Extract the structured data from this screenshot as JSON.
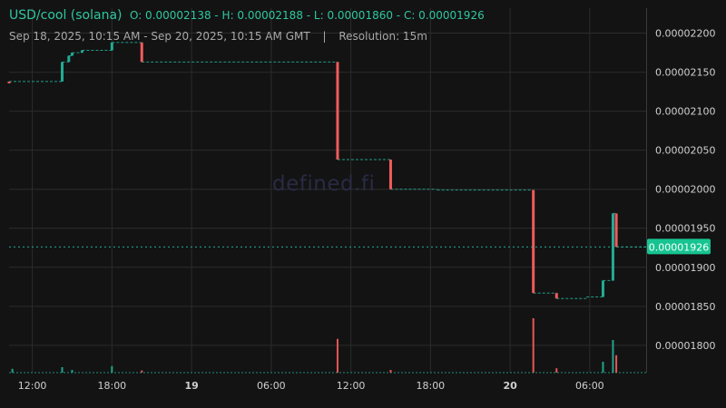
{
  "header": {
    "pair": "USD/cool (solana)",
    "ohlc": "O: 0.00002138 - H: 0.00002188 - L: 0.00001860 - C: 0.00001926",
    "range": "Sep 18, 2025, 10:15 AM - Sep 20, 2025, 10:15 AM GMT",
    "separator": "|",
    "resolution": "Resolution: 15m"
  },
  "watermark": "defined.fi",
  "colors": {
    "background": "#131313",
    "grid": "#2c2c2c",
    "up": "#22ab94",
    "down": "#f05b5b",
    "price_label_bg": "#17c491",
    "text": "#cfcfcf"
  },
  "chart_data": {
    "type": "candlestick",
    "x_ticks": [
      {
        "label": "12:00",
        "hour": 12,
        "bold": false
      },
      {
        "label": "18:00",
        "hour": 18,
        "bold": false
      },
      {
        "label": "19",
        "hour": 24,
        "bold": true
      },
      {
        "label": "06:00",
        "hour": 30,
        "bold": false
      },
      {
        "label": "12:00",
        "hour": 36,
        "bold": false
      },
      {
        "label": "18:00",
        "hour": 42,
        "bold": false
      },
      {
        "label": "20",
        "hour": 48,
        "bold": true
      },
      {
        "label": "06:00",
        "hour": 54,
        "bold": false
      }
    ],
    "x_range_hours": [
      10.25,
      58.25
    ],
    "y_ticks": [
      1.8e-05,
      1.85e-05,
      1.9e-05,
      1.95e-05,
      2e-05,
      2.05e-05,
      2.1e-05,
      2.15e-05,
      2.2e-05
    ],
    "y_tick_labels": [
      "0.00001800",
      "0.00001850",
      "0.00001900",
      "0.00001950",
      "0.00002000",
      "0.00002050",
      "0.00002100",
      "0.00002150",
      "0.00002200"
    ],
    "ylim": [
      1.765e-05,
      2.232e-05
    ],
    "last_price": 1.926e-05,
    "last_price_label": "0.00001926",
    "segments": [
      {
        "h0": 10.25,
        "h1": 14.25,
        "price": 2.138e-05
      },
      {
        "h0": 14.25,
        "h1": 14.75,
        "price": 2.163e-05
      },
      {
        "h0": 14.75,
        "h1": 15.0,
        "price": 2.171e-05
      },
      {
        "h0": 15.0,
        "h1": 15.75,
        "price": 2.175e-05
      },
      {
        "h0": 15.75,
        "h1": 18.0,
        "price": 2.178e-05
      },
      {
        "h0": 18.0,
        "h1": 20.25,
        "price": 2.188e-05
      },
      {
        "h0": 20.25,
        "h1": 35.0,
        "price": 2.163e-05
      },
      {
        "h0": 35.0,
        "h1": 39.0,
        "price": 2.038e-05
      },
      {
        "h0": 39.0,
        "h1": 42.5,
        "price": 2e-05
      },
      {
        "h0": 42.5,
        "h1": 49.75,
        "price": 1.999e-05
      },
      {
        "h0": 49.75,
        "h1": 51.5,
        "price": 1.867e-05
      },
      {
        "h0": 51.5,
        "h1": 53.75,
        "price": 1.86e-05
      },
      {
        "h0": 53.75,
        "h1": 55.0,
        "price": 1.862e-05
      },
      {
        "h0": 55.0,
        "h1": 55.75,
        "price": 1.883e-05
      },
      {
        "h0": 55.75,
        "h1": 56.0,
        "price": 1.969e-05
      },
      {
        "h0": 56.0,
        "h1": 58.25,
        "price": 1.926e-05
      }
    ],
    "candles": [
      {
        "hour": 10.25,
        "open": 2.138e-05,
        "close": 2.136e-05,
        "dir": "down"
      },
      {
        "hour": 14.25,
        "open": 2.138e-05,
        "close": 2.163e-05,
        "dir": "up"
      },
      {
        "hour": 14.75,
        "open": 2.163e-05,
        "close": 2.171e-05,
        "dir": "up"
      },
      {
        "hour": 15.0,
        "open": 2.171e-05,
        "close": 2.175e-05,
        "dir": "up"
      },
      {
        "hour": 15.75,
        "open": 2.175e-05,
        "close": 2.178e-05,
        "dir": "up"
      },
      {
        "hour": 18.0,
        "open": 2.178e-05,
        "close": 2.188e-05,
        "dir": "up"
      },
      {
        "hour": 20.25,
        "open": 2.188e-05,
        "close": 2.163e-05,
        "dir": "down"
      },
      {
        "hour": 35.0,
        "open": 2.163e-05,
        "close": 2.038e-05,
        "dir": "down"
      },
      {
        "hour": 39.0,
        "open": 2.038e-05,
        "close": 2e-05,
        "dir": "down"
      },
      {
        "hour": 49.75,
        "open": 1.999e-05,
        "close": 1.867e-05,
        "dir": "down"
      },
      {
        "hour": 51.5,
        "open": 1.867e-05,
        "close": 1.86e-05,
        "dir": "down"
      },
      {
        "hour": 55.0,
        "open": 1.862e-05,
        "close": 1.883e-05,
        "dir": "up"
      },
      {
        "hour": 55.75,
        "open": 1.883e-05,
        "close": 1.969e-05,
        "dir": "up"
      },
      {
        "hour": 56.0,
        "open": 1.969e-05,
        "close": 1.926e-05,
        "dir": "down"
      }
    ],
    "volume": [
      {
        "hour": 10.5,
        "value": 0.07,
        "dir": "up"
      },
      {
        "hour": 14.25,
        "value": 0.1,
        "dir": "up"
      },
      {
        "hour": 15.0,
        "value": 0.05,
        "dir": "up"
      },
      {
        "hour": 18.0,
        "value": 0.12,
        "dir": "up"
      },
      {
        "hour": 20.25,
        "value": 0.04,
        "dir": "down"
      },
      {
        "hour": 35.0,
        "value": 0.62,
        "dir": "down"
      },
      {
        "hour": 39.0,
        "value": 0.05,
        "dir": "down"
      },
      {
        "hour": 49.75,
        "value": 1.0,
        "dir": "down"
      },
      {
        "hour": 51.5,
        "value": 0.08,
        "dir": "down"
      },
      {
        "hour": 55.0,
        "value": 0.2,
        "dir": "up"
      },
      {
        "hour": 55.75,
        "value": 0.6,
        "dir": "up"
      },
      {
        "hour": 56.0,
        "value": 0.32,
        "dir": "down"
      }
    ]
  }
}
